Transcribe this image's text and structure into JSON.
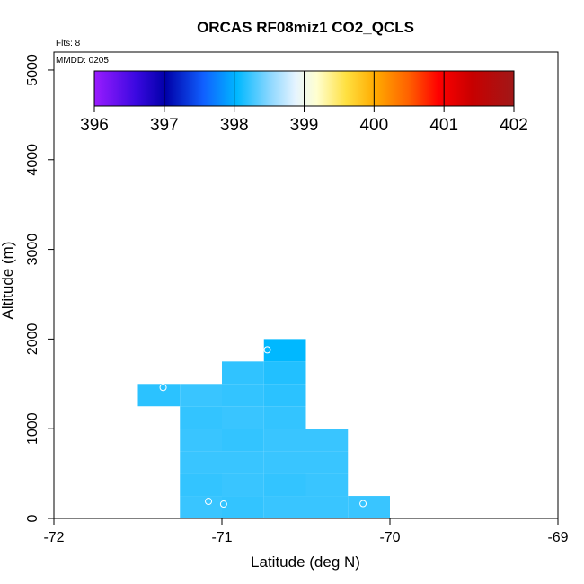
{
  "chart_data": {
    "type": "heatmap",
    "title": "ORCAS RF08miz1 CO2_QCLS",
    "xlabel": "Latitude (deg N)",
    "ylabel": "Altitude (m)",
    "xlim": [
      -72,
      -69
    ],
    "ylim": [
      0,
      5200
    ],
    "x_ticks": [
      "-72",
      "-71",
      "-70",
      "-69"
    ],
    "y_ticks": [
      "0",
      "1000",
      "2000",
      "3000",
      "4000",
      "5000"
    ],
    "flights_label": "Flts: 8",
    "date_label": "MMDD: 0205",
    "colorbar": {
      "ticks": [
        "396",
        "397",
        "398",
        "399",
        "400",
        "401",
        "402"
      ],
      "range": [
        396,
        402
      ]
    },
    "cells": [
      {
        "lon0": -71.5,
        "lon1": -71.25,
        "alt0": 1250,
        "alt1": 1500,
        "value": 398.15
      },
      {
        "lon0": -71.25,
        "lon1": -71.0,
        "alt0": 1250,
        "alt1": 1500,
        "value": 398.2
      },
      {
        "lon0": -71.25,
        "lon1": -71.0,
        "alt0": 1000,
        "alt1": 1250,
        "value": 398.18
      },
      {
        "lon0": -71.25,
        "lon1": -71.0,
        "alt0": 750,
        "alt1": 1000,
        "value": 398.2
      },
      {
        "lon0": -71.25,
        "lon1": -71.0,
        "alt0": 500,
        "alt1": 750,
        "value": 398.2
      },
      {
        "lon0": -71.25,
        "lon1": -71.0,
        "alt0": 250,
        "alt1": 500,
        "value": 398.18
      },
      {
        "lon0": -71.25,
        "lon1": -71.0,
        "alt0": 0,
        "alt1": 250,
        "value": 398.2
      },
      {
        "lon0": -71.0,
        "lon1": -70.75,
        "alt0": 1500,
        "alt1": 1750,
        "value": 398.17
      },
      {
        "lon0": -71.0,
        "lon1": -70.75,
        "alt0": 1250,
        "alt1": 1500,
        "value": 398.18
      },
      {
        "lon0": -71.0,
        "lon1": -70.75,
        "alt0": 1000,
        "alt1": 1250,
        "value": 398.2
      },
      {
        "lon0": -71.0,
        "lon1": -70.75,
        "alt0": 750,
        "alt1": 1000,
        "value": 398.18
      },
      {
        "lon0": -71.0,
        "lon1": -70.75,
        "alt0": 500,
        "alt1": 750,
        "value": 398.2
      },
      {
        "lon0": -71.0,
        "lon1": -70.75,
        "alt0": 250,
        "alt1": 500,
        "value": 398.2
      },
      {
        "lon0": -71.0,
        "lon1": -70.75,
        "alt0": 0,
        "alt1": 250,
        "value": 398.18
      },
      {
        "lon0": -70.75,
        "lon1": -70.5,
        "alt0": 1750,
        "alt1": 2000,
        "value": 398.0
      },
      {
        "lon0": -70.75,
        "lon1": -70.5,
        "alt0": 1500,
        "alt1": 1750,
        "value": 398.12
      },
      {
        "lon0": -70.75,
        "lon1": -70.5,
        "alt0": 1250,
        "alt1": 1500,
        "value": 398.15
      },
      {
        "lon0": -70.75,
        "lon1": -70.5,
        "alt0": 1000,
        "alt1": 1250,
        "value": 398.18
      },
      {
        "lon0": -70.75,
        "lon1": -70.5,
        "alt0": 750,
        "alt1": 1000,
        "value": 398.2
      },
      {
        "lon0": -70.75,
        "lon1": -70.5,
        "alt0": 500,
        "alt1": 750,
        "value": 398.2
      },
      {
        "lon0": -70.75,
        "lon1": -70.5,
        "alt0": 250,
        "alt1": 500,
        "value": 398.18
      },
      {
        "lon0": -70.75,
        "lon1": -70.5,
        "alt0": 0,
        "alt1": 250,
        "value": 398.2
      },
      {
        "lon0": -70.5,
        "lon1": -70.25,
        "alt0": 750,
        "alt1": 1000,
        "value": 398.2
      },
      {
        "lon0": -70.5,
        "lon1": -70.25,
        "alt0": 500,
        "alt1": 750,
        "value": 398.2
      },
      {
        "lon0": -70.5,
        "lon1": -70.25,
        "alt0": 250,
        "alt1": 500,
        "value": 398.2
      },
      {
        "lon0": -70.5,
        "lon1": -70.25,
        "alt0": 0,
        "alt1": 250,
        "value": 398.2
      },
      {
        "lon0": -70.25,
        "lon1": -70.0,
        "alt0": 0,
        "alt1": 250,
        "value": 398.2
      }
    ],
    "points": [
      {
        "lon": -71.35,
        "alt": 1460
      },
      {
        "lon": -70.73,
        "alt": 1880
      },
      {
        "lon": -71.08,
        "alt": 190
      },
      {
        "lon": -70.99,
        "alt": 160
      },
      {
        "lon": -70.16,
        "alt": 165
      }
    ]
  }
}
